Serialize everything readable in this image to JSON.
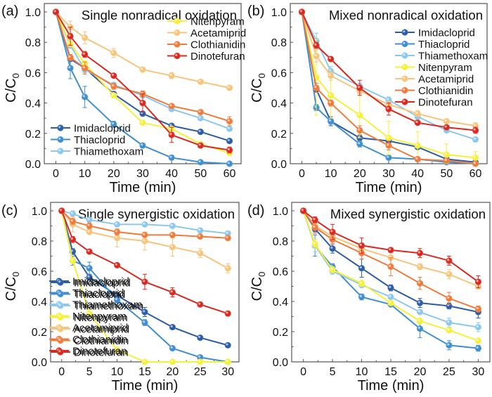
{
  "figure": {
    "colors": {
      "Imidacloprid": "#2b5ca8",
      "Thiacloprid": "#3f8fd0",
      "Thiamethoxam": "#8cc8ee",
      "Nitenpyram": "#f5f03a",
      "Acetamiprid": "#f8c47a",
      "Clothianidin": "#f07a3a",
      "Dinotefuran": "#d9281e"
    }
  },
  "chart_data": [
    {
      "panel_label": "(a)",
      "type": "line",
      "title": "Single nonradical oxidation",
      "xlabel": "Time (min)",
      "ylabel": "C/C0",
      "ylabel_main": "C/C",
      "ylabel_sub": "0",
      "xlim": [
        -4,
        64
      ],
      "ylim": [
        0,
        1.0
      ],
      "xticks": [
        0,
        10,
        20,
        30,
        40,
        50,
        60
      ],
      "yticks": [
        "0.0",
        "0.2",
        "0.4",
        "0.6",
        "0.8",
        "1.0"
      ],
      "legend_groups": [
        {
          "position": "top-right",
          "entries": [
            "Nitenpyram",
            "Acetamiprid",
            "Clothianidin",
            "Dinotefuran"
          ]
        },
        {
          "position": "bottom-left",
          "entries": [
            "Imidacloprid",
            "Thiacloprid",
            "Thiamethoxam"
          ]
        }
      ],
      "x": [
        0,
        5,
        10,
        20,
        30,
        40,
        50,
        60
      ],
      "series": [
        {
          "name": "Imidacloprid",
          "values": [
            1.0,
            0.69,
            0.63,
            0.46,
            0.33,
            0.25,
            0.21,
            0.15
          ],
          "err": [
            0,
            0.01,
            0.01,
            0.01,
            0.01,
            0.01,
            0.01,
            0.01
          ]
        },
        {
          "name": "Thiacloprid",
          "values": [
            1.0,
            0.63,
            0.44,
            0.26,
            0.12,
            0.04,
            0.01,
            0.0
          ],
          "err": [
            0,
            0.07,
            0.07,
            0.02,
            0.01,
            0.01,
            0.01,
            0.0
          ]
        },
        {
          "name": "Thiamethoxam",
          "values": [
            1.0,
            0.78,
            0.62,
            0.52,
            0.45,
            0.36,
            0.3,
            0.23
          ],
          "err": [
            0,
            0.02,
            0.02,
            0.01,
            0.01,
            0.01,
            0.01,
            0.01
          ]
        },
        {
          "name": "Nitenpyram",
          "values": [
            1.0,
            0.79,
            0.66,
            0.45,
            0.27,
            0.23,
            0.13,
            0.07
          ],
          "err": [
            0,
            0.01,
            0.02,
            0.01,
            0.01,
            0.01,
            0.01,
            0.01
          ]
        },
        {
          "name": "Acetamiprid",
          "values": [
            1.0,
            0.9,
            0.83,
            0.73,
            0.62,
            0.58,
            0.54,
            0.5
          ],
          "err": [
            0,
            0.04,
            0.04,
            0.03,
            0.01,
            0.02,
            0.01,
            0.01
          ]
        },
        {
          "name": "Clothianidin",
          "values": [
            1.0,
            0.7,
            0.63,
            0.51,
            0.46,
            0.38,
            0.34,
            0.28
          ],
          "err": [
            0,
            0.02,
            0.04,
            0.02,
            0.02,
            0.01,
            0.01,
            0.03
          ]
        },
        {
          "name": "Dinotefuran",
          "values": [
            1.0,
            0.84,
            0.72,
            0.58,
            0.4,
            0.19,
            0.12,
            0.09
          ],
          "err": [
            0,
            0.06,
            0.02,
            0.01,
            0.06,
            0.05,
            0.01,
            0.02
          ]
        }
      ]
    },
    {
      "panel_label": "(b)",
      "type": "line",
      "title": "Mixed nonradical oxidation",
      "xlabel": "Time (min)",
      "ylabel": "C/C0",
      "ylabel_main": "C/C",
      "ylabel_sub": "0",
      "xlim": [
        -4,
        64
      ],
      "ylim": [
        0,
        1.0
      ],
      "xticks": [
        0,
        10,
        20,
        30,
        40,
        50,
        60
      ],
      "yticks": [
        "0.0",
        "0.2",
        "0.4",
        "0.6",
        "0.8",
        "1.0"
      ],
      "legend_groups": [
        {
          "position": "top-right",
          "entries": [
            "Imidacloprid",
            "Thiacloprid",
            "Thiamethoxam",
            "Nitenpyram",
            "Acetamiprid",
            "Clothianidin",
            "Dinotefuran"
          ]
        }
      ],
      "x": [
        0,
        5,
        10,
        20,
        30,
        40,
        50,
        60
      ],
      "series": [
        {
          "name": "Imidacloprid",
          "values": [
            1.0,
            0.49,
            0.28,
            0.17,
            0.15,
            0.11,
            0.03,
            0.01
          ],
          "err": [
            0,
            0.02,
            0.03,
            0.02,
            0.01,
            0.01,
            0.01,
            0.01
          ]
        },
        {
          "name": "Thiacloprid",
          "values": [
            1.0,
            0.37,
            0.28,
            0.13,
            0.04,
            0.03,
            0.01,
            0.0
          ],
          "err": [
            0,
            0.02,
            0.02,
            0.02,
            0.01,
            0.01,
            0.01,
            0.0
          ]
        },
        {
          "name": "Thiamethoxam",
          "values": [
            1.0,
            0.81,
            0.61,
            0.51,
            0.42,
            0.31,
            0.22,
            0.16
          ],
          "err": [
            0,
            0.05,
            0.03,
            0.02,
            0.02,
            0.02,
            0.01,
            0.01
          ]
        },
        {
          "name": "Nitenpyram",
          "values": [
            1.0,
            0.57,
            0.45,
            0.32,
            0.17,
            0.12,
            0.06,
            0.04
          ],
          "err": [
            0,
            0.25,
            0.15,
            0.15,
            0.11,
            0.09,
            0.07,
            0.04
          ]
        },
        {
          "name": "Acetamiprid",
          "values": [
            1.0,
            0.71,
            0.58,
            0.48,
            0.39,
            0.33,
            0.28,
            0.25
          ],
          "err": [
            0,
            0.04,
            0.03,
            0.02,
            0.02,
            0.02,
            0.01,
            0.02
          ]
        },
        {
          "name": "Clothianidin",
          "values": [
            1.0,
            0.5,
            0.4,
            0.22,
            0.12,
            0.03,
            0.02,
            0.0
          ],
          "err": [
            0,
            0.03,
            0.02,
            0.03,
            0.03,
            0.01,
            0.01,
            0.0
          ]
        },
        {
          "name": "Dinotefuran",
          "values": [
            1.0,
            0.78,
            0.69,
            0.5,
            0.36,
            0.27,
            0.24,
            0.22
          ],
          "err": [
            0,
            0.02,
            0.01,
            0.05,
            0.04,
            0.01,
            0.01,
            0.02
          ]
        }
      ]
    },
    {
      "panel_label": "(c)",
      "type": "line",
      "title": "Single synergistic oxidation",
      "xlabel": "Time (min)",
      "ylabel": "C/C0",
      "ylabel_main": "C/C",
      "ylabel_sub": "0",
      "xlim": [
        -2,
        32
      ],
      "ylim": [
        0,
        1.0
      ],
      "xticks": [
        0,
        5,
        10,
        15,
        20,
        25,
        30
      ],
      "yticks": [
        "0.0",
        "0.2",
        "0.4",
        "0.6",
        "0.8",
        "1.0"
      ],
      "legend_groups": [
        {
          "position": "bottom-left",
          "entries": [
            "Imidacloprid",
            "Thiacloprid",
            "Thiamethoxam",
            "Nitenpyram",
            "Acetamiprid",
            "Clothianidin",
            "Dinotefuran"
          ]
        }
      ],
      "x": [
        0,
        2,
        5,
        10,
        15,
        20,
        25,
        30
      ],
      "series": [
        {
          "name": "Imidacloprid",
          "values": [
            1.0,
            0.73,
            0.56,
            0.44,
            0.33,
            0.23,
            0.16,
            0.11
          ],
          "err": [
            0,
            0.02,
            0.02,
            0.02,
            0.03,
            0.01,
            0.01,
            0.01
          ]
        },
        {
          "name": "Thiacloprid",
          "values": [
            1.0,
            0.67,
            0.62,
            0.41,
            0.26,
            0.09,
            0.03,
            0.0
          ],
          "err": [
            0,
            0.03,
            0.04,
            0.02,
            0.02,
            0.01,
            0.01,
            0.0
          ]
        },
        {
          "name": "Thiamethoxam",
          "values": [
            1.0,
            0.98,
            0.94,
            0.91,
            0.91,
            0.9,
            0.87,
            0.85
          ],
          "err": [
            0,
            0.02,
            0.01,
            0.01,
            0.01,
            0.01,
            0.01,
            0.01
          ]
        },
        {
          "name": "Nitenpyram",
          "values": [
            1.0,
            0.67,
            0.32,
            0.08,
            0.0,
            0.0,
            0.0,
            0.0
          ],
          "err": [
            0,
            0.02,
            0.01,
            0.01,
            0.0,
            0.0,
            0.0,
            0.0
          ]
        },
        {
          "name": "Acetamiprid",
          "values": [
            1.0,
            0.91,
            0.86,
            0.82,
            0.8,
            0.76,
            0.72,
            0.62
          ],
          "err": [
            0,
            0.05,
            0.01,
            0.06,
            0.06,
            0.06,
            0.03,
            0.03
          ]
        },
        {
          "name": "Clothianidin",
          "values": [
            1.0,
            0.93,
            0.9,
            0.86,
            0.84,
            0.84,
            0.83,
            0.82
          ],
          "err": [
            0,
            0.02,
            0.02,
            0.02,
            0.01,
            0.01,
            0.01,
            0.01
          ]
        },
        {
          "name": "Dinotefuran",
          "values": [
            1.0,
            0.81,
            0.73,
            0.64,
            0.53,
            0.46,
            0.38,
            0.32
          ],
          "err": [
            0,
            0.02,
            0.01,
            0.01,
            0.05,
            0.03,
            0.01,
            0.01
          ]
        }
      ]
    },
    {
      "panel_label": "(d)",
      "type": "line",
      "title": "Mixed synergistic oxidation",
      "xlabel": "Time (min)",
      "ylabel": "C/C0",
      "ylabel_main": "C/C",
      "ylabel_sub": "0",
      "xlim": [
        -2,
        32
      ],
      "ylim": [
        0,
        1.0
      ],
      "xticks": [
        0,
        5,
        10,
        15,
        20,
        25,
        30
      ],
      "yticks": [
        "0.0",
        "0.2",
        "0.4",
        "0.6",
        "0.8",
        "1.0"
      ],
      "legend_groups": [
        {
          "position": "bottom-left",
          "entries": [
            "Imidacloprid",
            "Thiacloprid",
            "Thiamethoxam",
            "Nitenpyram",
            "Acetamiprid",
            "Clothianidin",
            "Dinotefuran"
          ]
        }
      ],
      "x": [
        0,
        2,
        5,
        10,
        15,
        20,
        25,
        30
      ],
      "series": [
        {
          "name": "Imidacloprid",
          "values": [
            1.0,
            0.88,
            0.75,
            0.62,
            0.49,
            0.39,
            0.37,
            0.33
          ],
          "err": [
            0,
            0.02,
            0.03,
            0.06,
            0.02,
            0.03,
            0.02,
            0.04
          ]
        },
        {
          "name": "Thiacloprid",
          "values": [
            1.0,
            0.77,
            0.63,
            0.43,
            0.38,
            0.22,
            0.11,
            0.09
          ],
          "err": [
            0,
            0.07,
            0.02,
            0.02,
            0.01,
            0.06,
            0.03,
            0.02
          ]
        },
        {
          "name": "Thiamethoxam",
          "values": [
            1.0,
            0.77,
            0.6,
            0.51,
            0.43,
            0.33,
            0.26,
            0.23
          ],
          "err": [
            0,
            0.04,
            0.02,
            0.02,
            0.01,
            0.01,
            0.03,
            0.03
          ]
        },
        {
          "name": "Nitenpyram",
          "values": [
            1.0,
            0.78,
            0.61,
            0.52,
            0.39,
            0.27,
            0.21,
            0.14
          ],
          "err": [
            0,
            0.03,
            0.02,
            0.02,
            0.01,
            0.02,
            0.01,
            0.01
          ]
        },
        {
          "name": "Acetamiprid",
          "values": [
            1.0,
            0.9,
            0.83,
            0.75,
            0.69,
            0.63,
            0.58,
            0.5
          ],
          "err": [
            0,
            0.02,
            0.02,
            0.02,
            0.04,
            0.02,
            0.03,
            0.02
          ]
        },
        {
          "name": "Clothianidin",
          "values": [
            1.0,
            0.89,
            0.81,
            0.72,
            0.63,
            0.52,
            0.42,
            0.35
          ],
          "err": [
            0,
            0.04,
            0.03,
            0.04,
            0.06,
            0.04,
            0.04,
            0.02
          ]
        },
        {
          "name": "Dinotefuran",
          "values": [
            1.0,
            0.94,
            0.86,
            0.77,
            0.74,
            0.72,
            0.67,
            0.53
          ],
          "err": [
            0,
            0.02,
            0.05,
            0.05,
            0.01,
            0.03,
            0.03,
            0.04
          ]
        }
      ]
    }
  ]
}
